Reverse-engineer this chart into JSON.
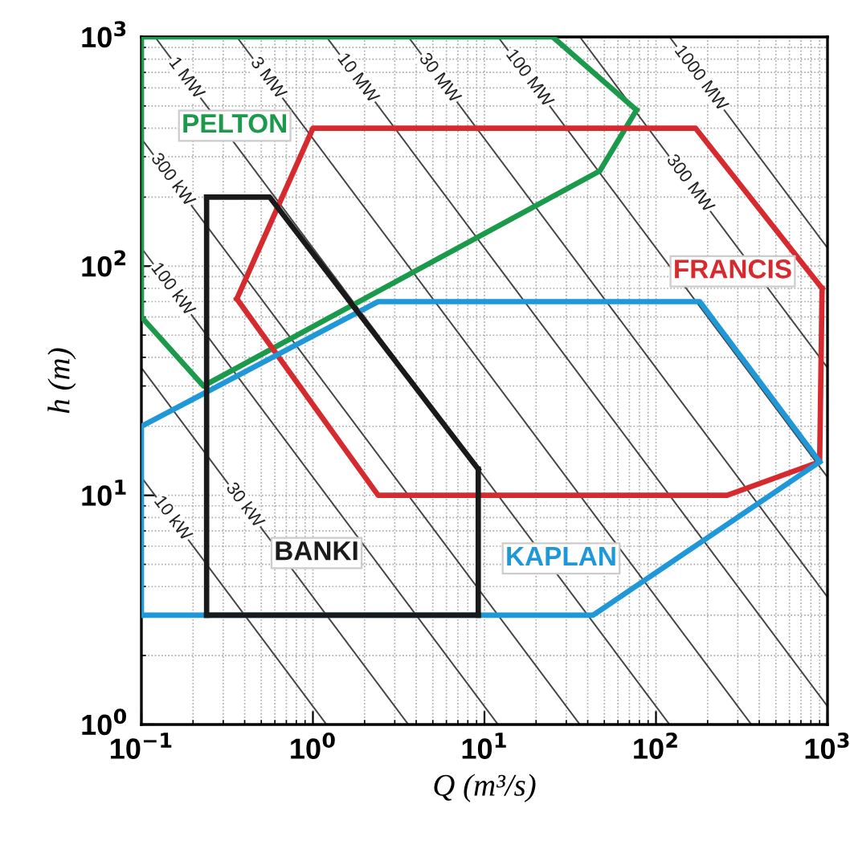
{
  "chart_data": {
    "type": "line",
    "xlabel": "Q (m³/s)",
    "ylabel": "h (m)",
    "log": "xy",
    "xlim": [
      0.1,
      1000
    ],
    "ylim": [
      1,
      1000
    ],
    "xticks": [
      {
        "value": 0.1,
        "label": "10$^{−1}$"
      },
      {
        "value": 1,
        "label": "10$^{0}$"
      },
      {
        "value": 10,
        "label": "10$^{1}$"
      },
      {
        "value": 100,
        "label": "10$^{2}$"
      },
      {
        "value": 1000,
        "label": "10$^{3}$"
      }
    ],
    "yticks": [
      {
        "value": 1,
        "label": "10$^{0}$"
      },
      {
        "value": 10,
        "label": "10$^{1}$"
      },
      {
        "value": 100,
        "label": "10$^{2}$"
      },
      {
        "value": 1000,
        "label": "10$^{3}$"
      }
    ],
    "grid": true,
    "legend": false,
    "marker": "none",
    "line_style": "solid",
    "series": [
      {
        "name": "10 kW",
        "color": "#444444",
        "x": [
          0.1,
          1.2
        ],
        "values": [
          12,
          1
        ]
      },
      {
        "name": "30 kW",
        "color": "#444444",
        "x": [
          0.1,
          3.6
        ],
        "values": [
          36,
          1
        ]
      },
      {
        "name": "100 kW",
        "color": "#444444",
        "x": [
          0.1,
          12
        ],
        "values": [
          120,
          1
        ]
      },
      {
        "name": "300 kW",
        "color": "#444444",
        "x": [
          0.1,
          36
        ],
        "values": [
          360,
          1
        ]
      },
      {
        "name": "1 MW",
        "color": "#444444",
        "x": [
          0.12,
          120
        ],
        "values": [
          1000,
          1
        ]
      },
      {
        "name": "3 MW",
        "color": "#444444",
        "x": [
          0.36,
          360
        ],
        "values": [
          1000,
          1
        ]
      },
      {
        "name": "10 MW",
        "color": "#444444",
        "x": [
          1.2,
          1000
        ],
        "values": [
          1000,
          1.2
        ]
      },
      {
        "name": "30 MW",
        "color": "#444444",
        "x": [
          3.6,
          1000
        ],
        "values": [
          1000,
          3.6
        ]
      },
      {
        "name": "100 MW",
        "color": "#444444",
        "x": [
          12,
          1000
        ],
        "values": [
          1000,
          12
        ]
      },
      {
        "name": "300 MW",
        "color": "#444444",
        "x": [
          36,
          1000
        ],
        "values": [
          1000,
          36
        ]
      },
      {
        "name": "1000 MW",
        "color": "#444444",
        "x": [
          120,
          1000
        ],
        "values": [
          1000,
          120
        ]
      },
      {
        "name": "PELTON",
        "color": "#1a9a4a",
        "x": [
          0.1,
          25,
          77
        ],
        "values": [
          1000,
          1000,
          480
        ]
      },
      {
        "color": "#1a9a4a",
        "x": [
          0.1,
          0.23,
          47,
          77
        ],
        "values": [
          60,
          30,
          260,
          480
        ]
      },
      {
        "color": "#1a9a4a",
        "x": [
          0.1,
          0.1
        ],
        "values": [
          60,
          1000
        ]
      },
      {
        "name": "FRANCIS",
        "color": "#d62a2f",
        "x": [
          0.36,
          1.0,
          170,
          930
        ],
        "values": [
          72,
          400,
          400,
          80
        ]
      },
      {
        "color": "#d62a2f",
        "x": [
          0.36,
          2.4,
          260,
          900,
          930
        ],
        "values": [
          72,
          10,
          10,
          14,
          80
        ]
      },
      {
        "name": "KAPLAN",
        "color": "#1e98d8",
        "x": [
          0.1,
          2.4,
          180,
          900
        ],
        "values": [
          20,
          70,
          70,
          14
        ]
      },
      {
        "color": "#1e98d8",
        "x": [
          0.1,
          43,
          900
        ],
        "values": [
          3,
          3,
          14
        ]
      },
      {
        "color": "#1e98d8",
        "x": [
          0.1,
          0.1
        ],
        "values": [
          3,
          20
        ]
      },
      {
        "name": "BANKI",
        "color": "#1a1a1a",
        "x": [
          0.24,
          0.56,
          9.2
        ],
        "values": [
          200,
          200,
          13
        ]
      },
      {
        "color": "#1a1a1a",
        "x": [
          0.24,
          9.2
        ],
        "values": [
          3,
          3
        ]
      },
      {
        "color": "#1a1a1a",
        "x": [
          0.24,
          0.24
        ],
        "values": [
          3,
          200
        ]
      },
      {
        "color": "#1a1a1a",
        "x": [
          9.2,
          9.2
        ],
        "values": [
          3,
          13
        ]
      }
    ]
  }
}
